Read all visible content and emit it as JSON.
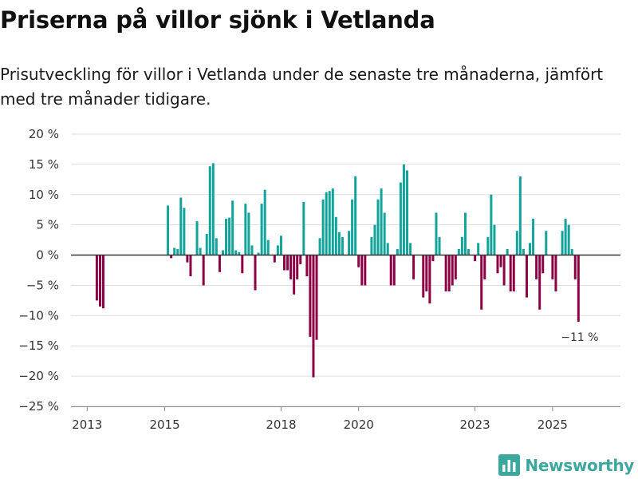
{
  "headline": "Priserna på villor sjönk i Vetlanda",
  "subheadline": "Prisutveckling för villor i Vetlanda under de senaste tre månaderna, jämfört med tre månader tidigare.",
  "brand": {
    "name": "Newsworthy",
    "icon": "bar-chart-logo-icon",
    "color": "#3ba79d"
  },
  "colors": {
    "positive": "#12a39b",
    "negative": "#8c0044",
    "gridline": "#dddddd",
    "zero_line": "#333333",
    "axis_text": "#333333"
  },
  "chart_data": {
    "type": "bar",
    "title": "Priserna på villor sjönk i Vetlanda",
    "subtitle": "Prisutveckling för villor i Vetlanda under de senaste tre månaderna, jämfört med tre månader tidigare.",
    "xlabel": "",
    "ylabel": "",
    "x_unit": "month index (0 = Jan 2013)",
    "xlim": [
      -5,
      165
    ],
    "ylim": [
      -25,
      20
    ],
    "y_ticks": [
      20,
      15,
      10,
      5,
      0,
      -5,
      -10,
      -15,
      -20,
      -25
    ],
    "y_tick_labels": [
      "20 %",
      "15 %",
      "10 %",
      "5 %",
      "0 %",
      "−5 %",
      "−10 %",
      "−15 %",
      "−20 %",
      "−25 %"
    ],
    "x_ticks": [
      {
        "x": 0,
        "label": "2013"
      },
      {
        "x": 24,
        "label": "2015"
      },
      {
        "x": 60,
        "label": "2018"
      },
      {
        "x": 84,
        "label": "2020"
      },
      {
        "x": 120,
        "label": "2023"
      },
      {
        "x": 144,
        "label": "2025"
      }
    ],
    "grid": true,
    "legend": "none",
    "bars": [
      {
        "x": 3,
        "value": -7.5
      },
      {
        "x": 4,
        "value": -8.5
      },
      {
        "x": 5,
        "value": -8.8
      },
      {
        "x": 25,
        "value": 8.2
      },
      {
        "x": 26,
        "value": -0.5
      },
      {
        "x": 27,
        "value": 1.2
      },
      {
        "x": 28,
        "value": 1.0
      },
      {
        "x": 29,
        "value": 9.5
      },
      {
        "x": 30,
        "value": 7.8
      },
      {
        "x": 31,
        "value": -1.2
      },
      {
        "x": 32,
        "value": -3.5
      },
      {
        "x": 34,
        "value": 5.6
      },
      {
        "x": 35,
        "value": 1.2
      },
      {
        "x": 36,
        "value": -5.0
      },
      {
        "x": 37,
        "value": 3.5
      },
      {
        "x": 38,
        "value": 14.7
      },
      {
        "x": 39,
        "value": 15.2
      },
      {
        "x": 40,
        "value": 2.8
      },
      {
        "x": 41,
        "value": -2.8
      },
      {
        "x": 42,
        "value": 0.8
      },
      {
        "x": 43,
        "value": 6.0
      },
      {
        "x": 44,
        "value": 6.2
      },
      {
        "x": 45,
        "value": 9.0
      },
      {
        "x": 46,
        "value": 0.8
      },
      {
        "x": 47,
        "value": 0.5
      },
      {
        "x": 48,
        "value": -3.0
      },
      {
        "x": 49,
        "value": 8.5
      },
      {
        "x": 50,
        "value": 7.0
      },
      {
        "x": 51,
        "value": 1.6
      },
      {
        "x": 52,
        "value": -5.8
      },
      {
        "x": 53,
        "value": 0.4
      },
      {
        "x": 54,
        "value": 8.5
      },
      {
        "x": 55,
        "value": 10.8
      },
      {
        "x": 56,
        "value": 2.5
      },
      {
        "x": 58,
        "value": -1.2
      },
      {
        "x": 59,
        "value": 1.6
      },
      {
        "x": 60,
        "value": 3.2
      },
      {
        "x": 61,
        "value": -2.5
      },
      {
        "x": 62,
        "value": -2.5
      },
      {
        "x": 63,
        "value": -4.0
      },
      {
        "x": 64,
        "value": -6.5
      },
      {
        "x": 65,
        "value": -4.0
      },
      {
        "x": 66,
        "value": -1.5
      },
      {
        "x": 67,
        "value": 8.8
      },
      {
        "x": 68,
        "value": -3.5
      },
      {
        "x": 69,
        "value": -13.5
      },
      {
        "x": 70,
        "value": -20.2
      },
      {
        "x": 71,
        "value": -14.0
      },
      {
        "x": 72,
        "value": 2.8
      },
      {
        "x": 73,
        "value": 9.2
      },
      {
        "x": 74,
        "value": 10.4
      },
      {
        "x": 75,
        "value": 10.6
      },
      {
        "x": 76,
        "value": 11.0
      },
      {
        "x": 77,
        "value": 6.3
      },
      {
        "x": 78,
        "value": 3.8
      },
      {
        "x": 79,
        "value": 3.0
      },
      {
        "x": 81,
        "value": 4.0
      },
      {
        "x": 82,
        "value": 9.2
      },
      {
        "x": 83,
        "value": 13.0
      },
      {
        "x": 84,
        "value": -2.0
      },
      {
        "x": 85,
        "value": -5.0
      },
      {
        "x": 86,
        "value": -5.0
      },
      {
        "x": 88,
        "value": 3.0
      },
      {
        "x": 89,
        "value": 5.0
      },
      {
        "x": 90,
        "value": 9.2
      },
      {
        "x": 91,
        "value": 11.0
      },
      {
        "x": 92,
        "value": 7.0
      },
      {
        "x": 93,
        "value": 2.0
      },
      {
        "x": 94,
        "value": -5.0
      },
      {
        "x": 95,
        "value": -5.0
      },
      {
        "x": 96,
        "value": 1.0
      },
      {
        "x": 97,
        "value": 12.0
      },
      {
        "x": 98,
        "value": 15.0
      },
      {
        "x": 99,
        "value": 14.0
      },
      {
        "x": 100,
        "value": 2.0
      },
      {
        "x": 101,
        "value": -4.0
      },
      {
        "x": 104,
        "value": -7.0
      },
      {
        "x": 105,
        "value": -6.0
      },
      {
        "x": 106,
        "value": -8.0
      },
      {
        "x": 107,
        "value": -1.0
      },
      {
        "x": 108,
        "value": 7.0
      },
      {
        "x": 109,
        "value": 3.0
      },
      {
        "x": 111,
        "value": -6.0
      },
      {
        "x": 112,
        "value": -6.0
      },
      {
        "x": 113,
        "value": -5.0
      },
      {
        "x": 114,
        "value": -4.0
      },
      {
        "x": 115,
        "value": 1.0
      },
      {
        "x": 116,
        "value": 3.0
      },
      {
        "x": 117,
        "value": 7.0
      },
      {
        "x": 118,
        "value": 1.0
      },
      {
        "x": 120,
        "value": -1.0
      },
      {
        "x": 121,
        "value": 2.0
      },
      {
        "x": 122,
        "value": -9.0
      },
      {
        "x": 123,
        "value": -4.0
      },
      {
        "x": 124,
        "value": 3.0
      },
      {
        "x": 125,
        "value": 10.0
      },
      {
        "x": 126,
        "value": 5.0
      },
      {
        "x": 127,
        "value": -3.0
      },
      {
        "x": 128,
        "value": -2.0
      },
      {
        "x": 129,
        "value": -5.0
      },
      {
        "x": 130,
        "value": 1.0
      },
      {
        "x": 131,
        "value": -6.0
      },
      {
        "x": 132,
        "value": -6.0
      },
      {
        "x": 133,
        "value": 4.0
      },
      {
        "x": 134,
        "value": 13.0
      },
      {
        "x": 135,
        "value": 1.0
      },
      {
        "x": 136,
        "value": -7.0
      },
      {
        "x": 137,
        "value": 2.0
      },
      {
        "x": 138,
        "value": 6.0
      },
      {
        "x": 139,
        "value": -4.0
      },
      {
        "x": 140,
        "value": -9.0
      },
      {
        "x": 141,
        "value": -3.0
      },
      {
        "x": 142,
        "value": 4.0
      },
      {
        "x": 144,
        "value": -4.0
      },
      {
        "x": 145,
        "value": -6.0
      },
      {
        "x": 147,
        "value": 4.0
      },
      {
        "x": 148,
        "value": 6.0
      },
      {
        "x": 149,
        "value": 5.0
      },
      {
        "x": 150,
        "value": 1.0
      },
      {
        "x": 151,
        "value": -4.0
      },
      {
        "x": 152,
        "value": -11.0
      }
    ],
    "annotations": [
      {
        "x": 152,
        "value": -11.0,
        "text": "−11 %"
      }
    ]
  }
}
